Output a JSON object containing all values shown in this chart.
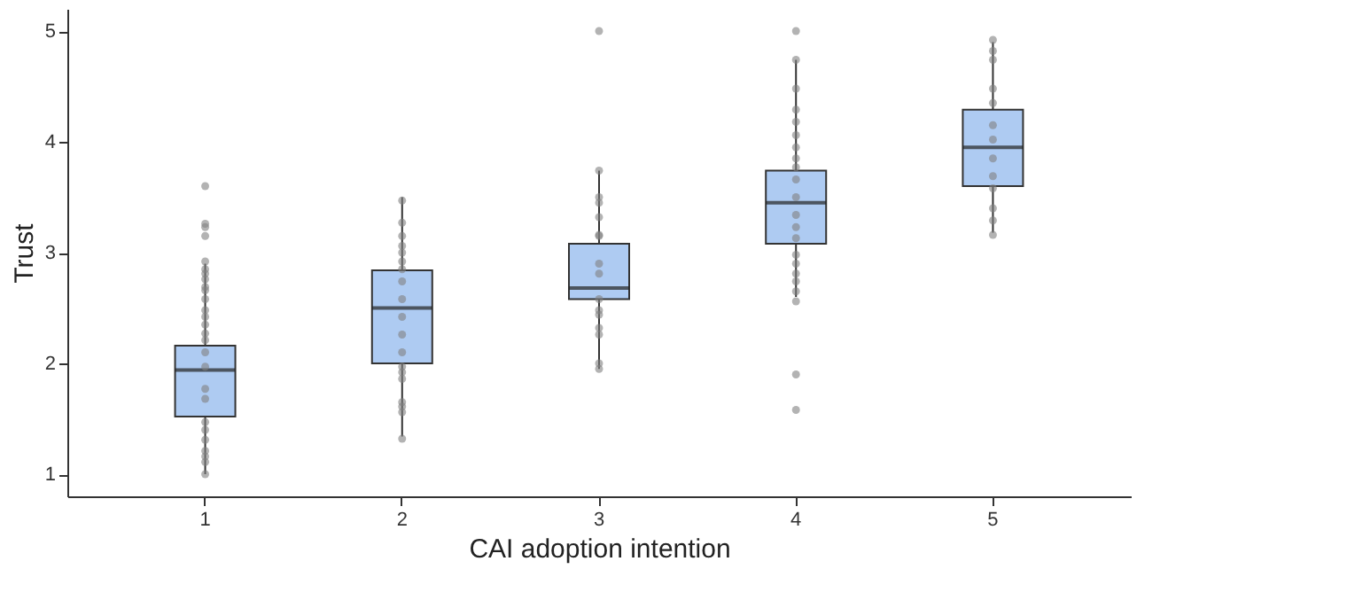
{
  "chart_data": {
    "type": "box",
    "xlabel": "CAI adoption intention",
    "ylabel": "Trust",
    "categories": [
      "1",
      "2",
      "3",
      "4",
      "5"
    ],
    "ylim": [
      0.8,
      5.2
    ],
    "yticks": [
      1,
      2,
      3,
      4,
      5
    ],
    "grid": false,
    "series": [
      {
        "color": "#aecbf2",
        "boxes": [
          {
            "low": 1.0,
            "q1": 1.52,
            "median": 1.94,
            "q3": 2.16,
            "high": 2.9
          },
          {
            "low": 1.34,
            "q1": 2.0,
            "median": 2.5,
            "q3": 2.84,
            "high": 3.5
          },
          {
            "low": 1.95,
            "q1": 2.58,
            "median": 2.68,
            "q3": 3.08,
            "high": 3.74
          },
          {
            "low": 2.6,
            "q1": 3.08,
            "median": 3.45,
            "q3": 3.74,
            "high": 4.74
          },
          {
            "low": 3.18,
            "q1": 3.6,
            "median": 3.95,
            "q3": 4.29,
            "high": 4.9
          }
        ]
      },
      {
        "type": "scatter",
        "color": "#808080",
        "marker": "circle",
        "x": [
          "1",
          "1",
          "1",
          "1",
          "1",
          "1",
          "1",
          "1",
          "1",
          "1",
          "1",
          "1",
          "1",
          "1",
          "1",
          "1",
          "1",
          "1",
          "1",
          "1",
          "1",
          "1",
          "1",
          "1",
          "1",
          "1",
          "1",
          "2",
          "2",
          "2",
          "2",
          "2",
          "2",
          "2",
          "2",
          "2",
          "2",
          "2",
          "2",
          "2",
          "2",
          "2",
          "2",
          "2",
          "2",
          "2",
          "3",
          "3",
          "3",
          "3",
          "3",
          "3",
          "3",
          "3",
          "3",
          "3",
          "3",
          "3",
          "3",
          "3",
          "3",
          "3",
          "4",
          "4",
          "4",
          "4",
          "4",
          "4",
          "4",
          "4",
          "4",
          "4",
          "4",
          "4",
          "4",
          "4",
          "4",
          "4",
          "4",
          "4",
          "4",
          "4",
          "4",
          "4",
          "5",
          "5",
          "5",
          "5",
          "5",
          "5",
          "5",
          "5",
          "5",
          "5",
          "5",
          "5",
          "5"
        ],
        "values": [
          3.6,
          3.26,
          3.23,
          3.15,
          2.92,
          2.85,
          2.81,
          2.76,
          2.69,
          2.66,
          2.58,
          2.48,
          2.42,
          2.35,
          2.27,
          2.21,
          2.1,
          1.97,
          1.77,
          1.68,
          1.47,
          1.4,
          1.31,
          1.21,
          1.16,
          1.11,
          1.0,
          3.47,
          3.27,
          3.15,
          3.06,
          3.0,
          2.92,
          2.85,
          2.74,
          2.58,
          2.42,
          2.26,
          2.1,
          1.97,
          1.92,
          1.86,
          1.65,
          1.61,
          1.56,
          1.32,
          5.0,
          3.74,
          3.5,
          3.45,
          3.32,
          3.16,
          3.15,
          2.9,
          2.81,
          2.58,
          2.48,
          2.44,
          2.32,
          2.26,
          2.0,
          1.95,
          5.0,
          4.74,
          4.48,
          4.29,
          4.18,
          4.06,
          3.95,
          3.85,
          3.77,
          3.66,
          3.5,
          3.34,
          3.23,
          3.13,
          2.98,
          2.9,
          2.81,
          2.74,
          2.65,
          2.56,
          1.9,
          1.58,
          4.92,
          4.82,
          4.74,
          4.48,
          4.35,
          4.15,
          4.02,
          3.85,
          3.69,
          3.58,
          3.4,
          3.29,
          3.16
        ]
      }
    ]
  }
}
